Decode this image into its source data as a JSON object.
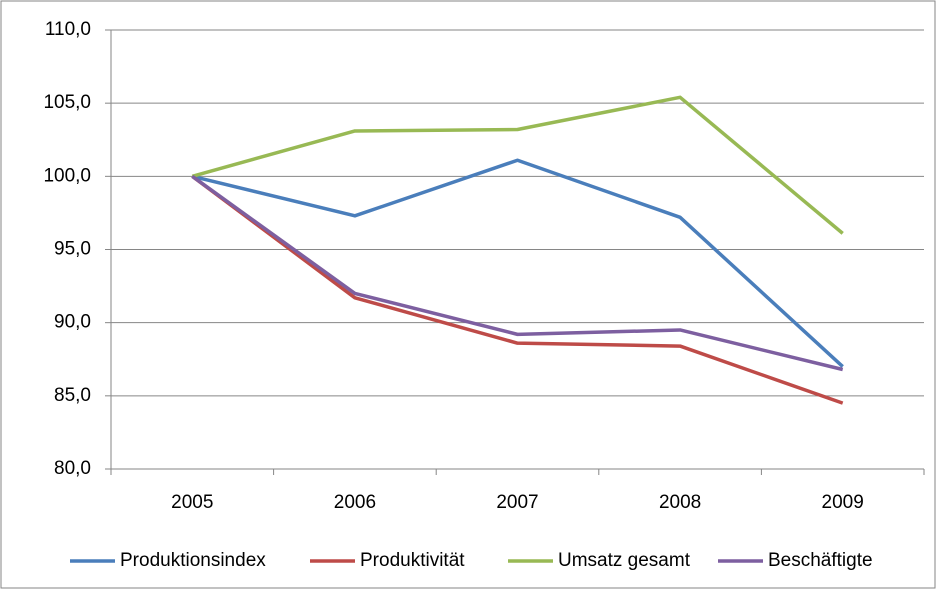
{
  "chart_data": {
    "type": "line",
    "categories": [
      "2005",
      "2006",
      "2007",
      "2008",
      "2009"
    ],
    "series": [
      {
        "name": "Produktionsindex",
        "color": "#4a7ebb",
        "values": [
          100.0,
          97.3,
          101.1,
          97.2,
          87.0
        ]
      },
      {
        "name": "Produktivität",
        "color": "#be4b48",
        "values": [
          100.0,
          91.7,
          88.6,
          88.4,
          84.5
        ]
      },
      {
        "name": "Umsatz gesamt",
        "color": "#98b954",
        "values": [
          100.0,
          103.1,
          103.2,
          105.4,
          96.1
        ]
      },
      {
        "name": "Beschäftigte",
        "color": "#7d5fa0",
        "values": [
          100.0,
          92.0,
          89.2,
          89.5,
          86.8
        ]
      }
    ],
    "ylim": [
      80,
      110
    ],
    "yticks": [
      {
        "value": 80,
        "label": "80,0"
      },
      {
        "value": 85,
        "label": "85,0"
      },
      {
        "value": 90,
        "label": "90,0"
      },
      {
        "value": 95,
        "label": "95,0"
      },
      {
        "value": 100,
        "label": "100,0"
      },
      {
        "value": 105,
        "label": "105,0"
      },
      {
        "value": 110,
        "label": "110,0"
      }
    ],
    "grid": true,
    "legend": "bottom"
  }
}
